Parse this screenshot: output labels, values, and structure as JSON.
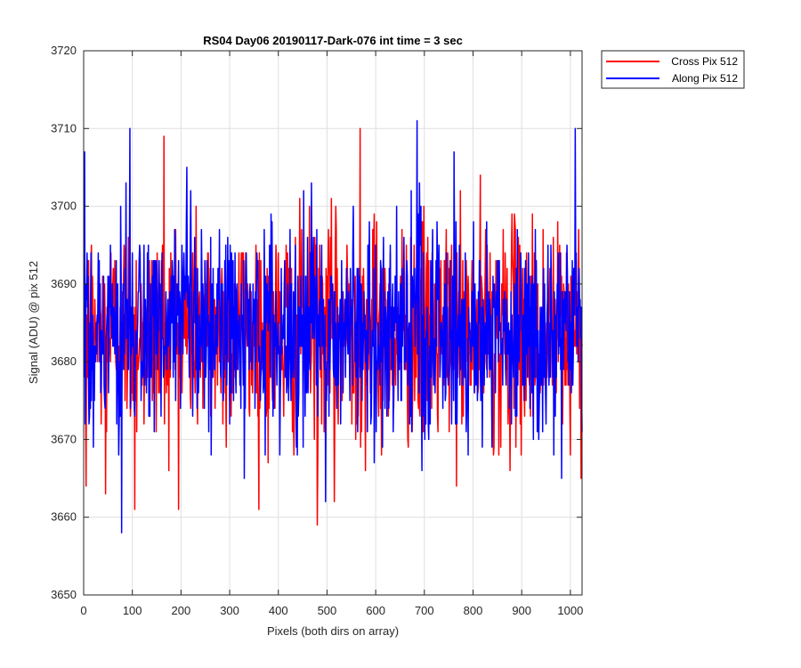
{
  "chart_data": {
    "type": "line",
    "title": "RS04 Day06 20190117-Dark-076 int time = 3 sec",
    "xlabel": "Pixels (both dirs on array)",
    "ylabel": "Signal (ADU) @ pix 512",
    "xlim": [
      0,
      1024
    ],
    "ylim": [
      3650,
      3720
    ],
    "xticks": [
      0,
      100,
      200,
      300,
      400,
      500,
      600,
      700,
      800,
      900,
      1000
    ],
    "yticks": [
      3650,
      3660,
      3670,
      3680,
      3690,
      3700,
      3710,
      3720
    ],
    "grid": true,
    "legend_position": "outside-top-right",
    "series": [
      {
        "name": "Cross Pix 512",
        "color": "#ff0000",
        "x_start": 1,
        "x_end": 1024,
        "n_points": 1024,
        "mean": 3684,
        "std": 7,
        "min": 3659,
        "max": 3710,
        "notable_points": [
          {
            "x": 5,
            "y": 3664
          },
          {
            "x": 45,
            "y": 3663
          },
          {
            "x": 105,
            "y": 3661
          },
          {
            "x": 165,
            "y": 3709
          },
          {
            "x": 480,
            "y": 3659
          },
          {
            "x": 515,
            "y": 3662
          },
          {
            "x": 568,
            "y": 3710
          },
          {
            "x": 1000,
            "y": 3668
          }
        ]
      },
      {
        "name": "Along Pix 512",
        "color": "#0000ff",
        "x_start": 1,
        "x_end": 1024,
        "n_points": 1024,
        "mean": 3684,
        "std": 7,
        "min": 3658,
        "max": 3711,
        "notable_points": [
          {
            "x": 2,
            "y": 3707
          },
          {
            "x": 78,
            "y": 3658
          },
          {
            "x": 95,
            "y": 3710
          },
          {
            "x": 330,
            "y": 3665
          },
          {
            "x": 685,
            "y": 3711
          },
          {
            "x": 1010,
            "y": 3710
          },
          {
            "x": 1024,
            "y": 3671
          }
        ]
      }
    ]
  }
}
